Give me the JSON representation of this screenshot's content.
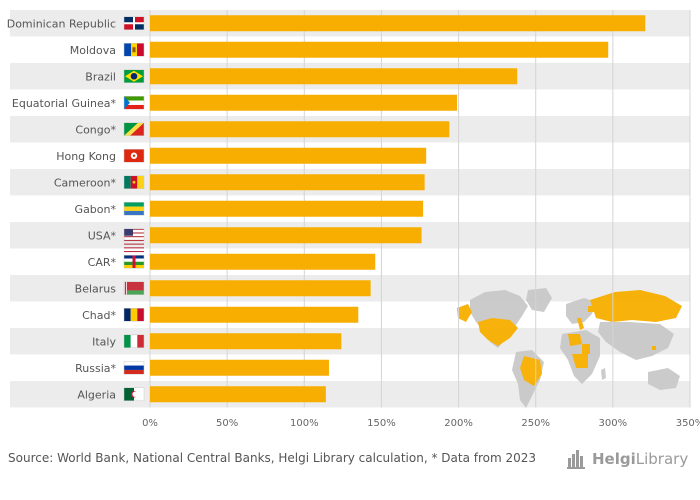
{
  "chart_data": {
    "type": "bar",
    "orientation": "horizontal",
    "categories": [
      "Dominican Republic",
      "Moldova",
      "Brazil",
      "Equatorial Guinea*",
      "Congo*",
      "Hong Kong",
      "Cameroon*",
      "Gabon*",
      "USA*",
      "CAR*",
      "Belarus",
      "Chad*",
      "Italy",
      "Russia*",
      "Algeria"
    ],
    "values": [
      321,
      297,
      238,
      199,
      194,
      179,
      178,
      177,
      176,
      146,
      143,
      135,
      124,
      116,
      114
    ],
    "xlim": [
      0,
      350
    ],
    "xticks": [
      0,
      50,
      100,
      150,
      200,
      250,
      300,
      350
    ],
    "xtick_labels": [
      "0%",
      "50%",
      "100%",
      "150%",
      "200%",
      "250%",
      "300%",
      "350%"
    ],
    "grid": true,
    "title": "",
    "xlabel": "",
    "ylabel": ""
  },
  "flags": [
    {
      "country": "Dominican Republic",
      "icon": "dominican-republic-flag-icon"
    },
    {
      "country": "Moldova",
      "icon": "moldova-flag-icon"
    },
    {
      "country": "Brazil",
      "icon": "brazil-flag-icon"
    },
    {
      "country": "Equatorial Guinea*",
      "icon": "equatorial-guinea-flag-icon"
    },
    {
      "country": "Congo*",
      "icon": "congo-flag-icon"
    },
    {
      "country": "Hong Kong",
      "icon": "hong-kong-flag-icon"
    },
    {
      "country": "Cameroon*",
      "icon": "cameroon-flag-icon"
    },
    {
      "country": "Gabon*",
      "icon": "gabon-flag-icon"
    },
    {
      "country": "USA*",
      "icon": "usa-flag-icon"
    },
    {
      "country": "CAR*",
      "icon": "car-flag-icon"
    },
    {
      "country": "Belarus",
      "icon": "belarus-flag-icon"
    },
    {
      "country": "Chad*",
      "icon": "chad-flag-icon"
    },
    {
      "country": "Italy",
      "icon": "italy-flag-icon"
    },
    {
      "country": "Russia*",
      "icon": "russia-flag-icon"
    },
    {
      "country": "Algeria",
      "icon": "algeria-flag-icon"
    }
  ],
  "colors": {
    "bar": "#F7AE00",
    "band": "#ECECEC",
    "map_land": "#C9C9C9",
    "map_highlight": "#F7AE00"
  },
  "footer": {
    "source": "Source: World Bank, National Central Banks, Helgi Library calculation, * Data from 2023",
    "brand_part1": "Helgi",
    "brand_part2": "Library"
  },
  "icons": {
    "world_map": "world-map-icon",
    "brand_logo": "helgi-library-logo-icon"
  }
}
